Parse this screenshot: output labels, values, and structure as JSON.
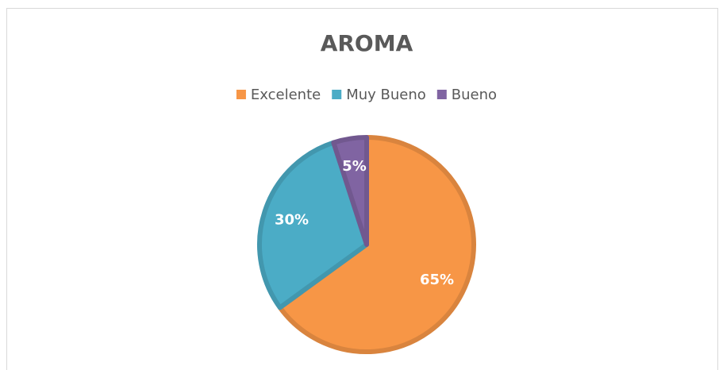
{
  "chart_data": {
    "type": "pie",
    "title": "AROMA",
    "categories": [
      "Excelente",
      "Muy Bueno",
      "Bueno"
    ],
    "values": [
      65,
      30,
      5
    ],
    "value_labels": [
      "65%",
      "30%",
      "5%"
    ],
    "colors": [
      "#f79646",
      "#4bacc6",
      "#8064a2"
    ],
    "legend": "top"
  }
}
